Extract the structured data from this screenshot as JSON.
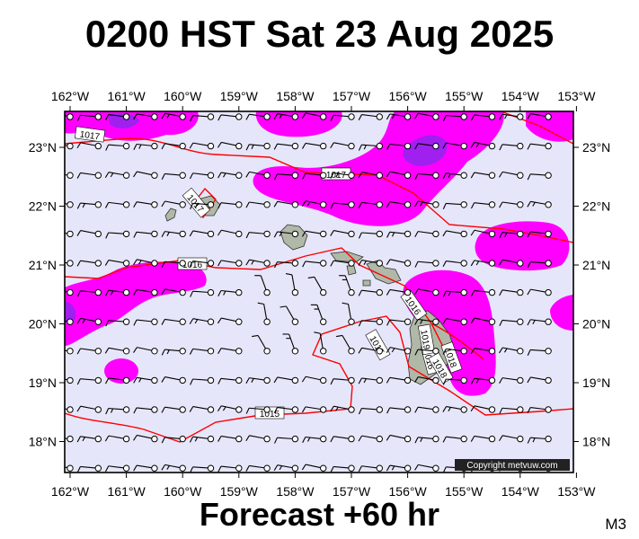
{
  "title": "0200 HST Sat 23 Aug 2025",
  "forecast_label": "Forecast +60 hr",
  "model_code": "M3",
  "copyright": "Copyright metvuw.com",
  "lon_ticks": [
    "162°W",
    "161°W",
    "160°W",
    "159°W",
    "158°W",
    "157°W",
    "156°W",
    "155°W",
    "154°W",
    "153°W"
  ],
  "lat_ticks": [
    "23°N",
    "22°N",
    "21°N",
    "20°N",
    "19°N",
    "18°N"
  ],
  "isobar_labels": [
    "1017",
    "1017",
    "1017",
    "1016",
    "1016",
    "1016",
    "1015",
    "1015",
    "1019",
    "1018",
    "1018"
  ],
  "colors": {
    "background_fill": "#e6e6fa",
    "rain_light": "#ff00ff",
    "rain_heavy": "#a020f0",
    "isobar": "#ff0000",
    "land": "#b0b8a8"
  }
}
